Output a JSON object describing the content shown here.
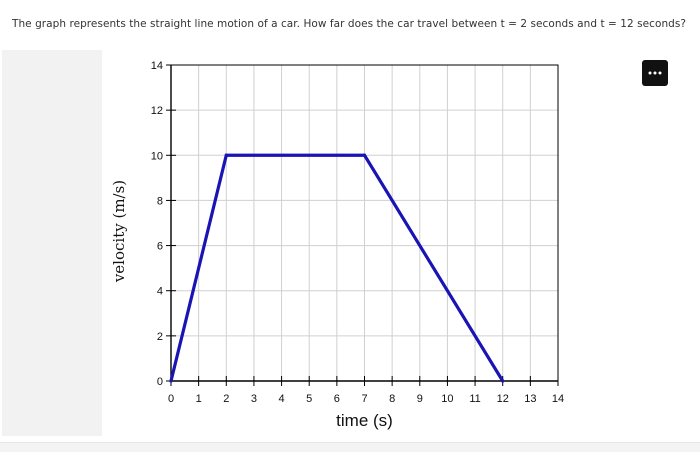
{
  "question": {
    "text": "The graph represents the straight line motion of a car. How far does the car travel between t = 2 seconds and t = 12 seconds?"
  },
  "toolbar": {
    "more_icon": "more-horizontal-icon"
  },
  "colors": {
    "line": "#1a14b4",
    "grid": "#d0d0d0",
    "axis": "#000000",
    "menu_button": "#111111"
  },
  "chart_data": {
    "type": "line",
    "xlabel": "time (s)",
    "ylabel": "velocity (m/s)",
    "xlim": [
      0,
      14
    ],
    "ylim": [
      0,
      14
    ],
    "x_ticks": [
      0,
      1,
      2,
      3,
      4,
      5,
      6,
      7,
      8,
      9,
      10,
      11,
      12,
      13,
      14
    ],
    "y_ticks": [
      0,
      2,
      4,
      6,
      8,
      10,
      12,
      14
    ],
    "grid": true,
    "series": [
      {
        "x": [
          0,
          2,
          7,
          12
        ],
        "y": [
          0,
          10,
          10,
          0
        ]
      }
    ]
  }
}
